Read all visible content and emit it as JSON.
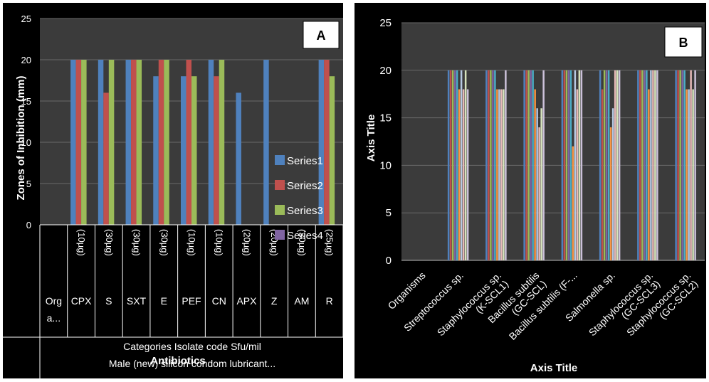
{
  "colors": {
    "series": [
      "#4f81bd",
      "#c0504d",
      "#9bbb59",
      "#8064a2",
      "#4bacc6",
      "#f79646",
      "#b7c9e2",
      "#e6b9b8",
      "#d7e4bd",
      "#ccc1da"
    ],
    "plot_bg": "#3b3b3b",
    "panel_bg": "#000000",
    "gridline": "#6a6a6a"
  },
  "chart_data": [
    {
      "panel_label": "A",
      "type": "bar",
      "title": "",
      "ylabel": "Zones of Inhibition (mm)",
      "xlabel": "Antibiotics",
      "ylim": [
        0,
        25
      ],
      "yticks": [
        0,
        5,
        10,
        15,
        20,
        25
      ],
      "grid": true,
      "legend_position": "right",
      "categories": [
        "Orga...",
        "CPX",
        "S",
        "SXT",
        "E",
        "PEF",
        "CN",
        "APX",
        "Z",
        "AM",
        "R"
      ],
      "doses": [
        "",
        "(10µg)",
        "(30µg)",
        "(30µg)",
        "(30µg)",
        "(10µg)",
        "(10µg)",
        "(20µg)",
        "(20µg)",
        "(30µg)",
        "(25µg)"
      ],
      "category_axis_title": "Categories Isolate code Sfu/mil Male (new) silicon condom lubricant...",
      "series": [
        {
          "name": "Series1",
          "values": [
            null,
            20,
            20,
            20,
            18,
            18,
            20,
            16,
            20,
            null,
            20
          ]
        },
        {
          "name": "Series2",
          "values": [
            null,
            20,
            16,
            20,
            20,
            20,
            18,
            null,
            null,
            null,
            20
          ]
        },
        {
          "name": "Series3",
          "values": [
            null,
            20,
            20,
            20,
            20,
            18,
            20,
            null,
            null,
            null,
            18
          ]
        },
        {
          "name": "Series4",
          "values": [
            null,
            null,
            null,
            null,
            null,
            null,
            null,
            null,
            null,
            null,
            null
          ]
        }
      ]
    },
    {
      "panel_label": "B",
      "type": "bar",
      "title": "",
      "ylabel": "Axis Title",
      "xlabel": "Axis Title",
      "ylim": [
        0,
        25
      ],
      "yticks": [
        0,
        5,
        10,
        15,
        20,
        25
      ],
      "grid": true,
      "legend_position": "none",
      "categories": [
        "Organisms",
        "Streptococcus sp.",
        "Staphylococcus sp. (K-SCL1)",
        "Bacillus subtilis (GC-SCL)",
        "Bacillus subtilis (F-...",
        "Salmonella sp.",
        "Staphylococcus sp. (GC-SCL3)",
        "Staphylococcus sp. (GC-SCL2)"
      ],
      "category_label_lines": [
        [
          "Organisms"
        ],
        [
          "Streptococcus sp."
        ],
        [
          "Staphylococcus sp.",
          "(K-SCL1)"
        ],
        [
          "Bacillus subtilis",
          "(GC-SCL)"
        ],
        [
          "Bacillus subtilis (F-..."
        ],
        [
          "Salmonella sp."
        ],
        [
          "Staphylococcus sp.",
          "(GC-SCL3)"
        ],
        [
          "Staphylococcus sp.",
          "(GC-SCL2)"
        ]
      ],
      "series": [
        {
          "values": [
            null,
            20,
            20,
            20,
            20,
            20,
            20,
            20
          ]
        },
        {
          "values": [
            null,
            20,
            20,
            20,
            20,
            18,
            20,
            20
          ]
        },
        {
          "values": [
            null,
            20,
            20,
            20,
            20,
            20,
            20,
            20
          ]
        },
        {
          "values": [
            null,
            20,
            20,
            20,
            20,
            20,
            20,
            20
          ]
        },
        {
          "values": [
            null,
            20,
            20,
            20,
            20,
            20,
            20,
            20
          ]
        },
        {
          "values": [
            null,
            18,
            18,
            18,
            12,
            14,
            18,
            18
          ]
        },
        {
          "values": [
            null,
            20,
            18,
            16,
            20,
            16,
            20,
            18
          ]
        },
        {
          "values": [
            null,
            18,
            18,
            14,
            18,
            20,
            20,
            20
          ]
        },
        {
          "values": [
            null,
            20,
            18,
            16,
            20,
            20,
            20,
            18
          ]
        },
        {
          "values": [
            null,
            18,
            20,
            20,
            20,
            20,
            20,
            20
          ]
        }
      ]
    }
  ]
}
